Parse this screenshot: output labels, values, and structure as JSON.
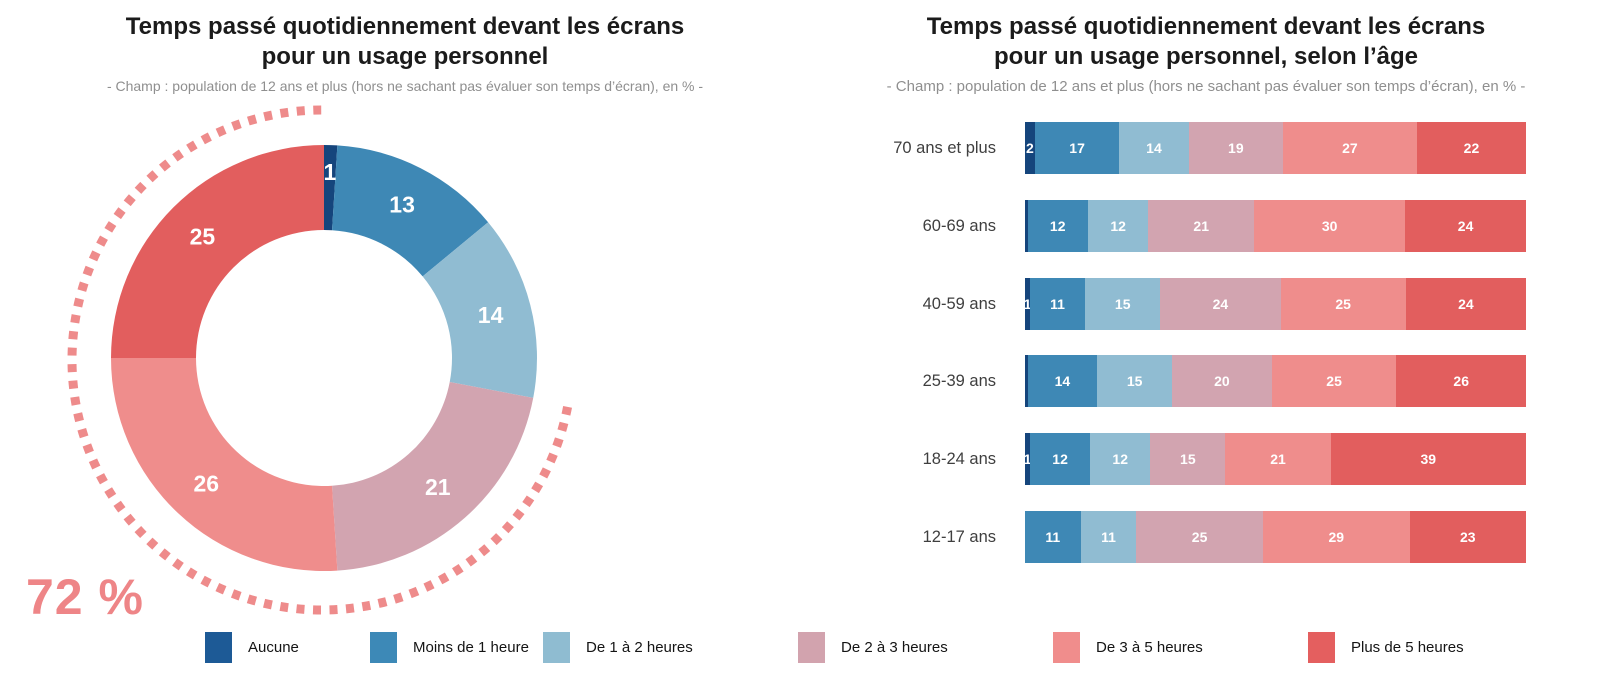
{
  "left_chart": {
    "title_lines": [
      "Temps passé quotidiennement devant les écrans",
      "pour un usage personnel"
    ],
    "subtitle": "- Champ : population de 12 ans et plus (hors ne sachant pas évaluer son temps d’écran), en % -",
    "annotation_label": "72 %"
  },
  "right_chart": {
    "title_lines": [
      "Temps passé quotidiennement devant les écrans",
      "pour un usage personnel, selon l’âge"
    ],
    "subtitle": "- Champ : population de 12 ans et plus (hors ne sachant pas évaluer son temps d’écran), en % -"
  },
  "legend": {
    "items": [
      {
        "label": "Aucune",
        "color": "#1d5a96"
      },
      {
        "label": "Moins de 1 heure",
        "color": "#3d89b7"
      },
      {
        "label": "De 1 à 2 heures",
        "color": "#8fbcd1"
      },
      {
        "label": "De 2 à 3 heures",
        "color": "#d2a3ae"
      },
      {
        "label": "De 3 à 5 heures",
        "color": "#f08d8c"
      },
      {
        "label": "Plus de 5 heures",
        "color": "#e45f5f"
      }
    ]
  },
  "chart_data": [
    {
      "type": "pie",
      "variant": "donut",
      "title": "Temps passé quotidiennement devant les écrans pour un usage personnel",
      "subtitle": "- Champ : population de 12 ans et plus (hors ne sachant pas évaluer son temps d’écran), en % -",
      "categories": [
        "Aucune",
        "Moins de 1 heure",
        "De 1 à 2 heures",
        "De 2 à 3 heures",
        "De 3 à 5 heures",
        "Plus de 5 heures"
      ],
      "values": [
        1,
        13,
        14,
        21,
        26,
        25
      ],
      "colors": [
        "#15457c",
        "#3e88b5",
        "#90bcd2",
        "#d2a4b0",
        "#ef8d8c",
        "#e25e5e"
      ],
      "start_angle_deg": 0,
      "direction": "clockwise",
      "value_unit": "%",
      "annotation": {
        "text": "72 %",
        "sum_of_categories": [
          "De 2 à 3 heures",
          "De 3 à 5 heures",
          "Plus de 5 heures"
        ],
        "arc_start_pct": 28,
        "arc_end_pct": 100,
        "color": "#ee8b8b"
      }
    },
    {
      "type": "bar",
      "variant": "stacked_horizontal",
      "title": "Temps passé quotidiennement devant les écrans pour un usage personnel, selon l’âge",
      "subtitle": "- Champ : population de 12 ans et plus (hors ne sachant pas évaluer son temps d’écran), en % -",
      "categories": [
        "70 ans et plus",
        "60-69 ans",
        "40-59 ans",
        "25-39 ans",
        "18-24 ans",
        "12-17 ans"
      ],
      "xlim": [
        0,
        100
      ],
      "value_unit": "%",
      "series": [
        {
          "name": "Aucune",
          "color": "#15457c",
          "values": [
            2,
            0.5,
            1,
            0.5,
            1,
            0
          ],
          "labels": [
            "2",
            "",
            "1",
            "",
            "1",
            ""
          ]
        },
        {
          "name": "Moins de 1 heure",
          "color": "#3e88b5",
          "values": [
            17,
            12,
            11,
            14,
            12,
            11
          ],
          "labels": [
            "17",
            "12",
            "11",
            "14",
            "12",
            "11"
          ]
        },
        {
          "name": "De 1 à 2 heures",
          "color": "#90bcd2",
          "values": [
            14,
            12,
            15,
            15,
            12,
            11
          ],
          "labels": [
            "14",
            "12",
            "15",
            "15",
            "12",
            "11"
          ]
        },
        {
          "name": "De 2 à 3 heures",
          "color": "#d2a4b0",
          "values": [
            19,
            21,
            24,
            20,
            15,
            25
          ],
          "labels": [
            "19",
            "21",
            "24",
            "20",
            "15",
            "25"
          ]
        },
        {
          "name": "De 3 à 5 heures",
          "color": "#ef8d8c",
          "values": [
            27,
            30,
            25,
            25,
            21,
            29
          ],
          "labels": [
            "27",
            "30",
            "25",
            "25",
            "21",
            "29"
          ]
        },
        {
          "name": "Plus de 5 heures",
          "color": "#e25e5e",
          "values": [
            22,
            24,
            24,
            26,
            39,
            23
          ],
          "labels": [
            "22",
            "24",
            "24",
            "26",
            "39",
            "23"
          ]
        }
      ]
    }
  ]
}
